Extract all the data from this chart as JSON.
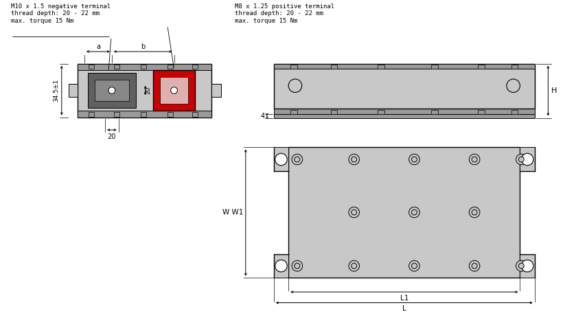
{
  "bg_color": "#ffffff",
  "light_gray": "#c8c8c8",
  "mid_gray": "#999999",
  "dark_gray": "#606060",
  "red_color": "#cc0000",
  "outline_color": "#000000",
  "label_neg": "M10 x 1.5 negative terminal\nthread depth: 20 - 22 mm\nmax. torque 15 Nm",
  "label_pos": "M8 x 1.25 positive terminal\nthread depth: 20 - 22 mm\nmax. torque 15 Nm",
  "dim_34": "34.5±1",
  "dim_20": "20",
  "dim_a": "a",
  "dim_b": "b",
  "dim_4": "4",
  "dim_H": "H",
  "dim_W": "W W1",
  "dim_L": "L",
  "dim_L1": "L1"
}
